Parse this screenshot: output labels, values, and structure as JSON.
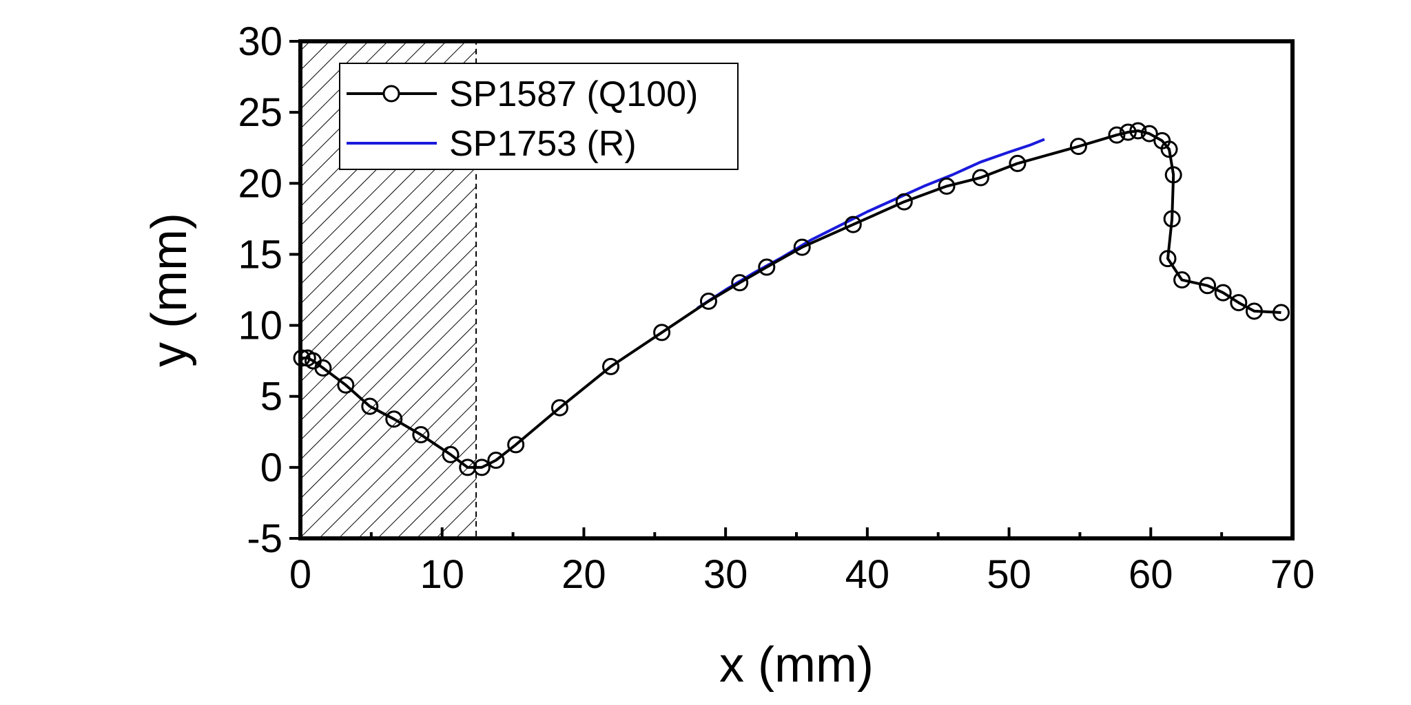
{
  "chart_data": {
    "type": "line",
    "title": "",
    "xlabel": "x (mm)",
    "ylabel": "y (mm)",
    "xlim": [
      0,
      70
    ],
    "ylim": [
      -5,
      30
    ],
    "xticks": [
      0,
      10,
      20,
      30,
      40,
      50,
      60,
      70
    ],
    "yticks": [
      -5,
      0,
      5,
      10,
      15,
      20,
      25,
      30
    ],
    "xtick_labels": [
      "0",
      "10",
      "20",
      "30",
      "40",
      "50",
      "60",
      "70"
    ],
    "ytick_labels": [
      "-5",
      "0",
      "5",
      "10",
      "15",
      "20",
      "25",
      "30"
    ],
    "grid": false,
    "legend_position": "top-left",
    "shaded_region": {
      "x_from": 0,
      "x_to": 12.4,
      "pattern": "diagonal-hatch"
    },
    "series": [
      {
        "name": "SP1587 (Q100)",
        "color": "#000000",
        "marker": "open-circle",
        "x": [
          0.1,
          0.5,
          0.9,
          1.6,
          3.2,
          4.9,
          6.6,
          8.5,
          10.6,
          11.8,
          12.8,
          13.8,
          15.2,
          18.3,
          21.9,
          25.5,
          28.8,
          31.0,
          32.9,
          35.4,
          39.0,
          42.6,
          45.6,
          48.0,
          50.6,
          54.9,
          57.6,
          58.4,
          59.1,
          59.9,
          60.8,
          61.3,
          61.6,
          61.5,
          61.2,
          62.2,
          64.0,
          65.1,
          66.2,
          67.3,
          69.2
        ],
        "y": [
          7.7,
          7.7,
          7.5,
          7.0,
          5.8,
          4.3,
          3.4,
          2.3,
          0.9,
          0.0,
          0.0,
          0.5,
          1.6,
          4.2,
          7.1,
          9.5,
          11.7,
          13.0,
          14.1,
          15.5,
          17.1,
          18.7,
          19.8,
          20.4,
          21.4,
          22.6,
          23.4,
          23.6,
          23.7,
          23.5,
          23.0,
          22.4,
          20.6,
          17.5,
          14.7,
          13.2,
          12.8,
          12.3,
          11.6,
          11.0,
          10.9
        ]
      },
      {
        "name": "SP1753 (R)",
        "color": "#1a1adc",
        "marker": "none",
        "x": [
          28.0,
          30.0,
          32.0,
          34.0,
          36.0,
          38.0,
          40.0,
          42.0,
          44.0,
          46.0,
          48.0,
          50.0,
          51.5,
          52.5
        ],
        "y": [
          11.2,
          12.5,
          13.7,
          14.8,
          16.0,
          17.0,
          18.0,
          18.9,
          19.8,
          20.6,
          21.5,
          22.2,
          22.7,
          23.1
        ]
      }
    ]
  }
}
